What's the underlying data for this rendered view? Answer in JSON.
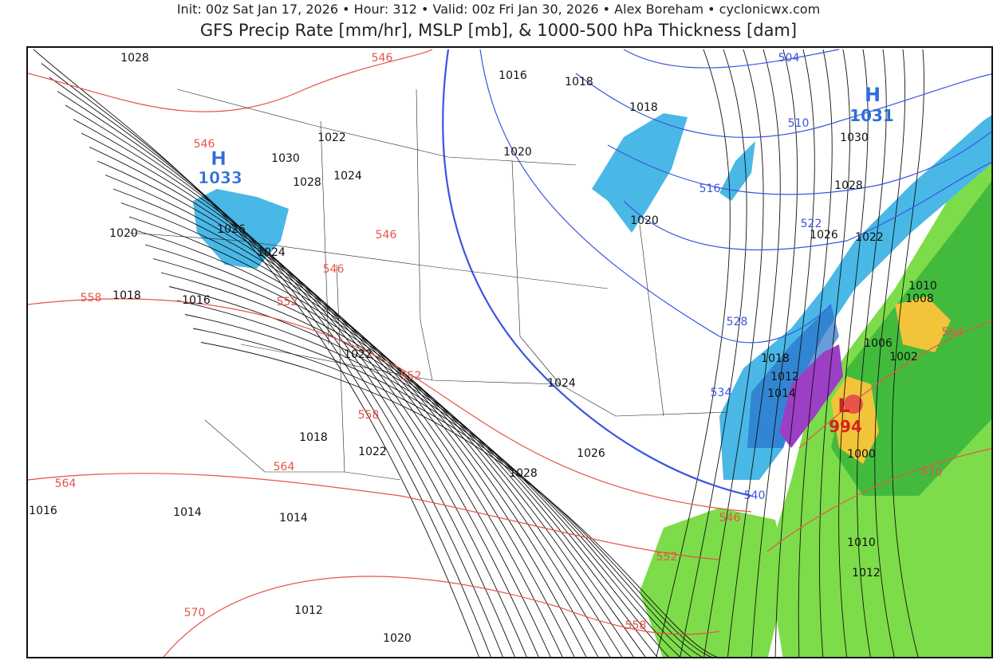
{
  "header": {
    "subtitle": "Init: 00z Sat Jan 17, 2026 • Hour: 312 • Valid: 00z Fri Jan 30, 2026 • Alex Boreham • cyclonicwx.com",
    "title": "GFS Precip Rate [mm/hr], MSLP [mb], & 1000-500 hPa Thickness [dam]"
  },
  "colors": {
    "isobar": "#111111",
    "thickness_warm": "#e8534a",
    "thickness_cold": "#3a55e0",
    "rain_light": "#7ddc4a",
    "rain_mod": "#33b33a",
    "snow": "#49b8e6",
    "snow_heavy": "#2a6fc9",
    "mix": "#9b3fc4",
    "heavy": "#f2c43a",
    "high": "#2e6fd6",
    "low": "#d62020"
  },
  "pressure_centers": [
    {
      "type": "H",
      "value": "1033"
    },
    {
      "type": "H",
      "value": "1031"
    },
    {
      "type": "L",
      "value": "994"
    }
  ],
  "isobar_labels": [
    "1028",
    "1016",
    "1018",
    "1018",
    "1022",
    "1020",
    "1030",
    "1028",
    "1024",
    "1026",
    "1024",
    "1020",
    "1018",
    "1016",
    "1020",
    "1030",
    "1028",
    "1026",
    "1022",
    "1010",
    "1008",
    "1006",
    "1002",
    "1018",
    "1012",
    "1014",
    "1000",
    "1022",
    "1024",
    "1018",
    "1022",
    "1026",
    "1028",
    "1016",
    "1014",
    "1014",
    "1012",
    "1020",
    "1010",
    "1012"
  ],
  "thickness_labels_warm": [
    "546",
    "546",
    "546",
    "546",
    "552",
    "558",
    "552",
    "558",
    "564",
    "564",
    "570",
    "546",
    "552",
    "558",
    "570",
    "564"
  ],
  "thickness_labels_cold": [
    "504",
    "510",
    "516",
    "522",
    "528",
    "534",
    "540"
  ]
}
